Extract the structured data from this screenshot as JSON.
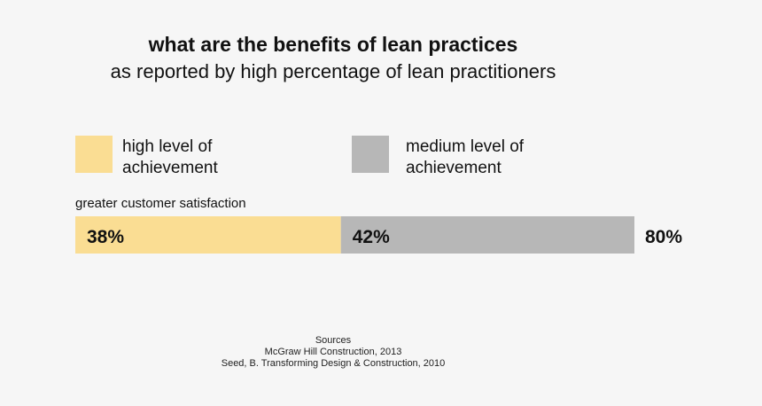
{
  "title": "what are the benefits of lean practices",
  "subtitle": "as reported by high percentage of lean practitioners",
  "legend": {
    "items": [
      {
        "label_line1": "high level of",
        "label_line2": "achievement",
        "color": "#fadd93"
      },
      {
        "label_line1": "medium level of",
        "label_line2": "achievement",
        "color": "#b7b7b7"
      }
    ]
  },
  "chart_data": {
    "type": "bar",
    "orientation": "horizontal",
    "stacked": true,
    "title": "what are the benefits of lean practices",
    "subtitle": "as reported by high percentage of lean practitioners",
    "categories": [
      "greater customer satisfaction"
    ],
    "series": [
      {
        "name": "high level of achievement",
        "values": [
          38
        ],
        "label": "38%",
        "color": "#fadd93"
      },
      {
        "name": "medium level of achievement",
        "values": [
          42
        ],
        "label": "42%",
        "color": "#b7b7b7"
      }
    ],
    "totals": [
      80
    ],
    "total_labels": [
      "80%"
    ],
    "xlim": [
      0,
      80
    ],
    "xlabel": "",
    "ylabel": "",
    "grid": false,
    "legend": "top"
  },
  "sources": {
    "heading": "Sources",
    "lines": [
      "McGraw Hill Construction, 2013",
      "Seed, B. Transforming Design & Construction, 2010"
    ]
  }
}
